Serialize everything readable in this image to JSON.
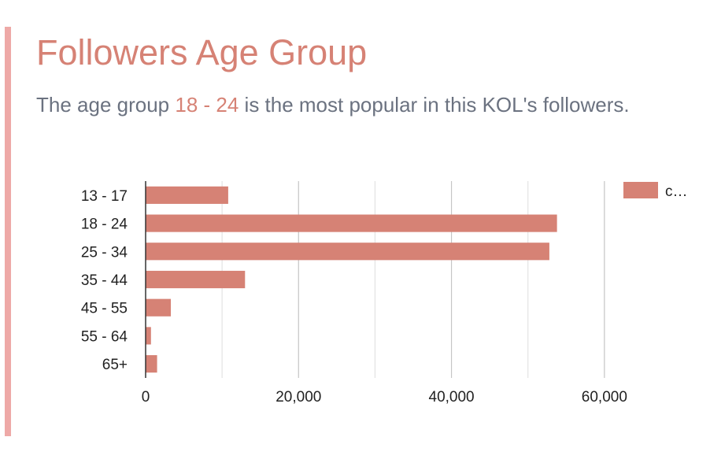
{
  "colors": {
    "accent": "#d68275",
    "accent_bar": "#eea9a7",
    "text_muted": "#6b7280",
    "gridline": "#e3e3e3",
    "gridline_major": "#c6c6c6",
    "axis": "#333333"
  },
  "header": {
    "title": "Followers Age Group",
    "subtitle_before": "The age group ",
    "subtitle_highlight": "18 - 24",
    "subtitle_after": " is the most popular in this KOL's followers."
  },
  "chart_data": {
    "type": "bar",
    "orientation": "horizontal",
    "categories": [
      "13 - 17",
      "18 - 24",
      "25 - 34",
      "35 - 44",
      "45 - 55",
      "55 - 64",
      "65+"
    ],
    "series": [
      {
        "name": "c…",
        "values": [
          10800,
          53800,
          52800,
          13000,
          3300,
          700,
          1500
        ]
      }
    ],
    "xlim": [
      0,
      70000
    ],
    "x_ticks": [
      0,
      20000,
      40000,
      60000
    ],
    "x_tick_labels": [
      "0",
      "20,000",
      "40,000",
      "60,000"
    ],
    "grid": true,
    "legend": "top-right"
  }
}
